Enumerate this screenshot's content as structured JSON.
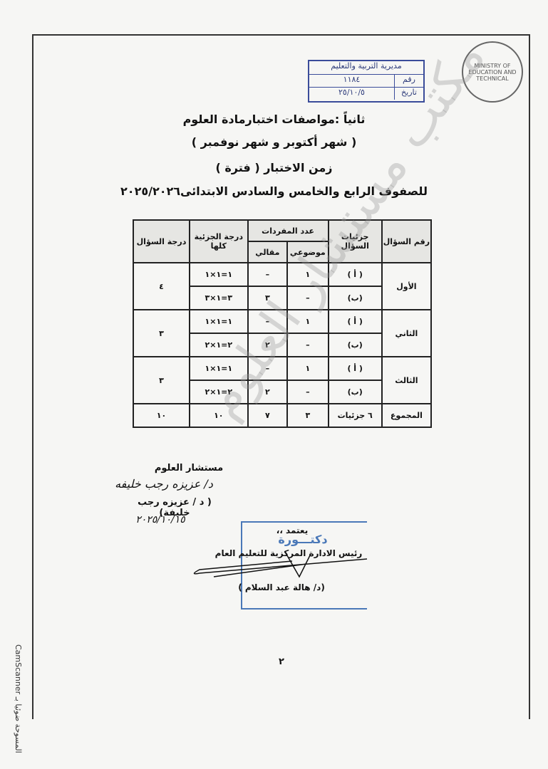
{
  "stamp": {
    "header": "مديرية التربية والتعليم",
    "number_label": "رقم",
    "number": "١١٨٤",
    "date_label": "تاريخ",
    "date": "٢٥/١٠/٥"
  },
  "logo": {
    "text": "MINISTRY OF EDUCATION AND TECHNICAL"
  },
  "title": "ثانياً :مواصفات اختبارمادة العلوم",
  "subtitle": "( شهر أكتوبر و شهر نوفمبر )",
  "duration": "زمن الاختبار ( فترة )",
  "grades": "للصفوف الرابع والخامس والسادس الابتدائى٢٠٢٥/٢٠٢٦",
  "table": {
    "headers": {
      "question_no": "رقم السؤال",
      "parts": "جزئيات السؤال",
      "items_count": "عدد المفردات",
      "objective": "موضوعي",
      "essay": "مقالي",
      "part_score": "درجة الجزئية كلها",
      "question_score": "درجة السؤال"
    },
    "questions": [
      {
        "name": "الأول",
        "score": "٤",
        "rows": [
          {
            "part": "( أ )",
            "objective": "١",
            "essay": "–",
            "part_score": "١=١×١"
          },
          {
            "part": "(ب)",
            "objective": "–",
            "essay": "٣",
            "part_score": "٣=١×٣"
          }
        ]
      },
      {
        "name": "الثاني",
        "score": "٣",
        "rows": [
          {
            "part": "( أ )",
            "objective": "١",
            "essay": "–",
            "part_score": "١=١×١"
          },
          {
            "part": "(ب)",
            "objective": "–",
            "essay": "٢",
            "part_score": "٢=١×٢"
          }
        ]
      },
      {
        "name": "الثالث",
        "score": "٣",
        "rows": [
          {
            "part": "( أ )",
            "objective": "١",
            "essay": "–",
            "part_score": "١=١×١"
          },
          {
            "part": "(ب)",
            "objective": "–",
            "essay": "٢",
            "part_score": "٢=١×٢"
          }
        ]
      }
    ],
    "total": {
      "label": "المجموع",
      "parts": "٦ جزئيات",
      "objective": "٣",
      "essay": "٧",
      "part_score": "١٠",
      "question_score": "١٠"
    }
  },
  "advisor": {
    "title": "مستشار العلوم",
    "signature": "د/ عزيزه رجب خليفه",
    "name": "( د / عزيزه رجب خليفة)",
    "date": "٢٠٢٥/١٠/١٥"
  },
  "approval": {
    "label": "يعتمد ،،",
    "stamp_text": "دكتـــورة",
    "title": "رئيس الادارة المركزية للتعليم العام",
    "name": "(د/ هالة عبد السلام )"
  },
  "page_number": "٢",
  "scanner": "CamScanner المسوحة ضوئيا بـ"
}
